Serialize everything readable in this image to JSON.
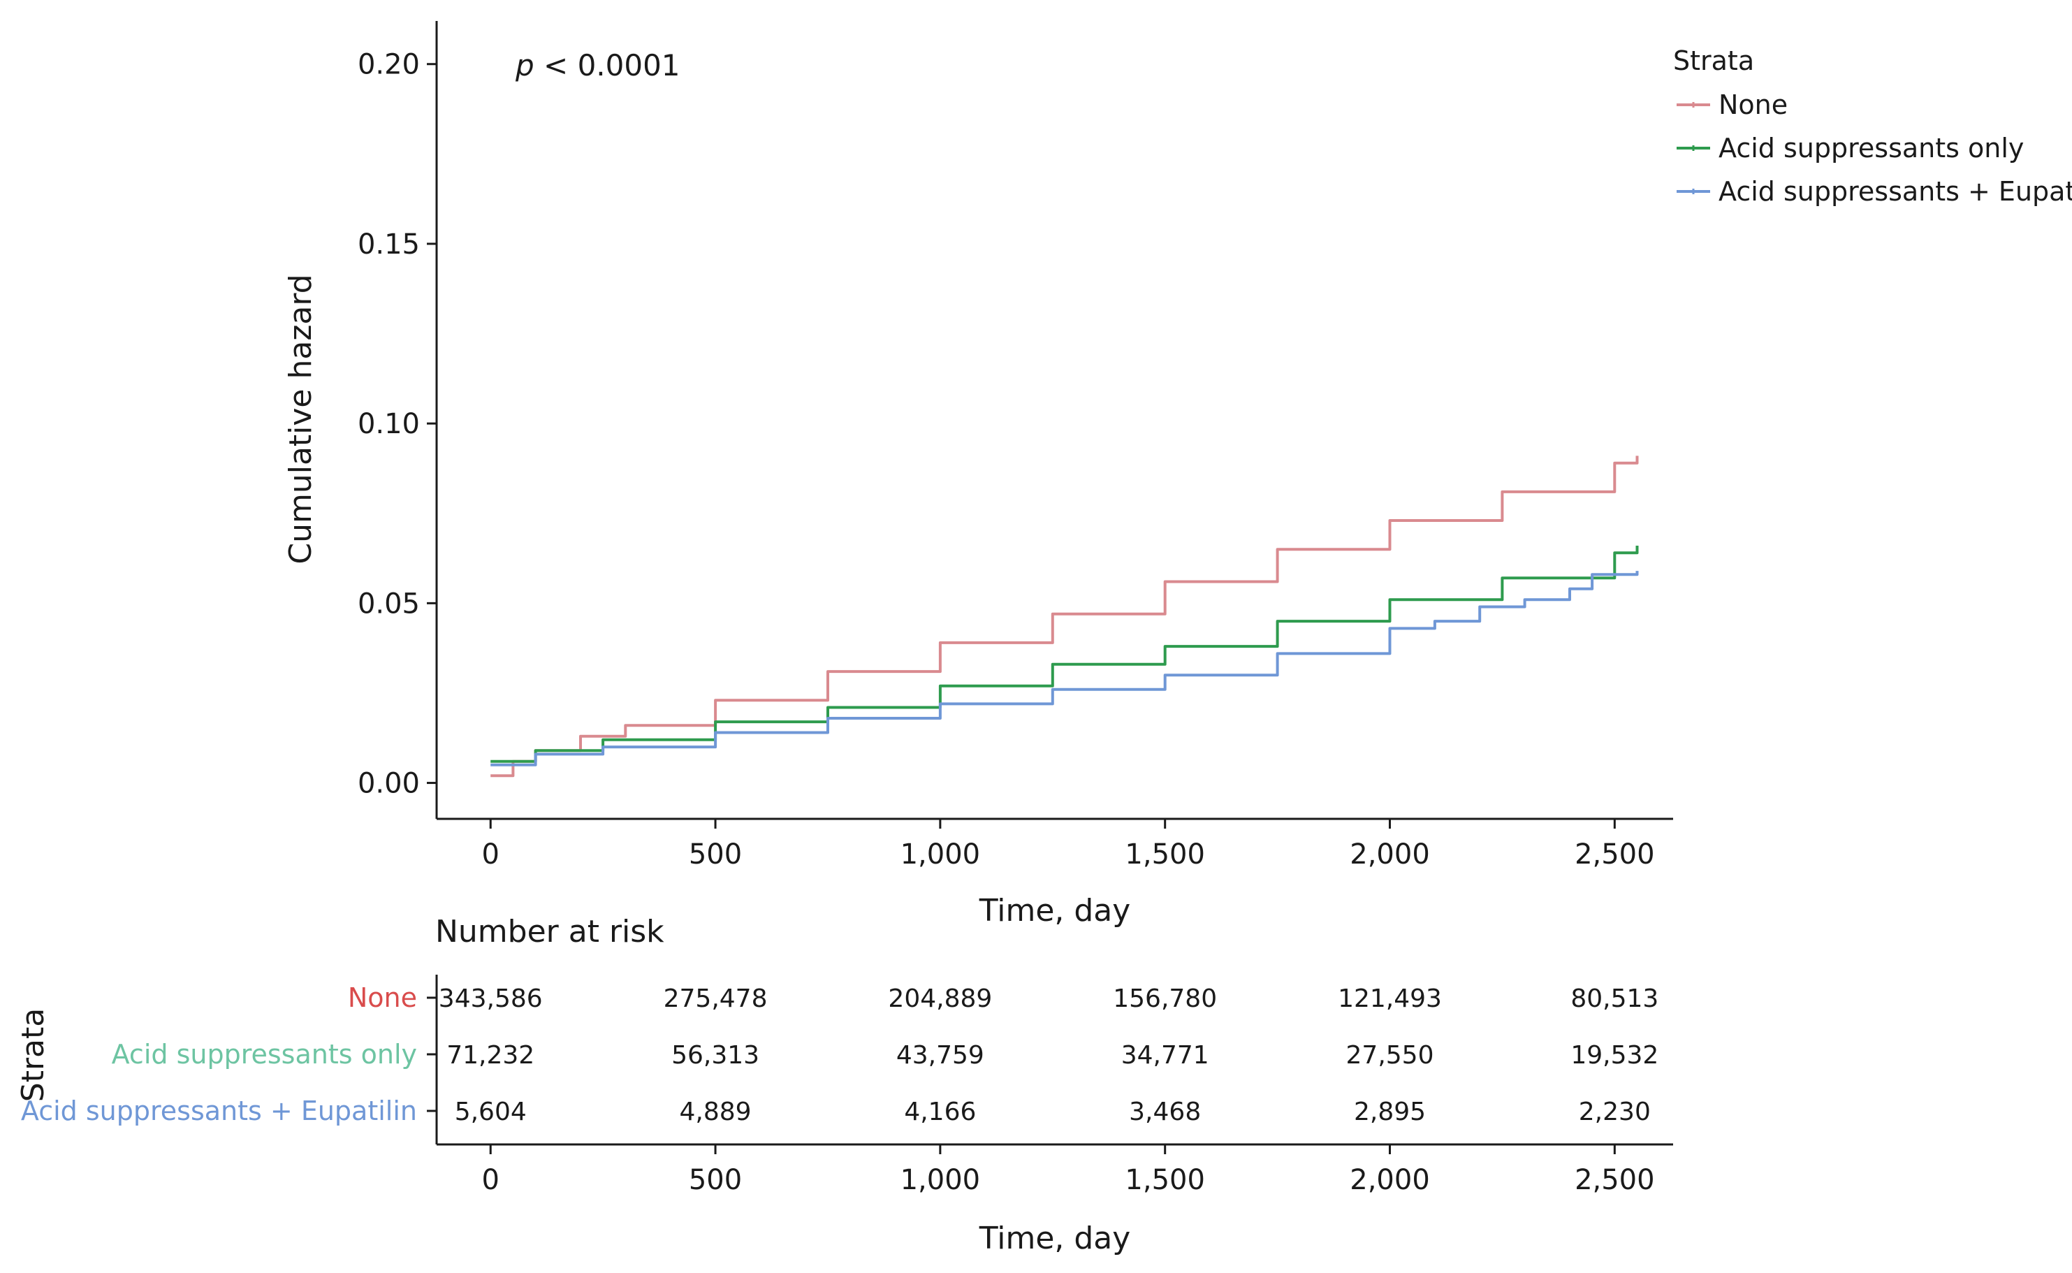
{
  "chart_data": [
    {
      "type": "line",
      "annotation": {
        "prefix": "p",
        "rest": " < 0.0001"
      },
      "xlabel": "Time, day",
      "ylabel": "Cumulative hazard",
      "xlim": [
        -120,
        2630
      ],
      "ylim": [
        -0.01,
        0.212
      ],
      "x_ticks": [
        0,
        500,
        1000,
        1500,
        2000,
        2500
      ],
      "x_tick_labels": [
        "0",
        "500",
        "1,000",
        "1,500",
        "2,000",
        "2,500"
      ],
      "y_ticks": [
        0,
        0.05,
        0.1,
        0.15,
        0.2
      ],
      "y_tick_labels": [
        "0.00",
        "0.05",
        "0.10",
        "0.15",
        "0.20"
      ],
      "grid": false,
      "legend": {
        "title": "Strata",
        "placement": "top-right, outside plot"
      },
      "series": [
        {
          "name": "None",
          "color": "#d98a8f",
          "x": [
            0,
            50,
            100,
            200,
            300,
            500,
            750,
            1000,
            1250,
            1500,
            1750,
            2000,
            2250,
            2500,
            2550
          ],
          "y": [
            0.002,
            0.006,
            0.009,
            0.013,
            0.016,
            0.023,
            0.031,
            0.039,
            0.047,
            0.056,
            0.065,
            0.073,
            0.081,
            0.089,
            0.091
          ]
        },
        {
          "name": "Acid suppressants only",
          "color": "#2e9b4e",
          "x": [
            0,
            100,
            250,
            500,
            750,
            1000,
            1250,
            1500,
            1750,
            2000,
            2250,
            2500,
            2550
          ],
          "y": [
            0.006,
            0.009,
            0.012,
            0.017,
            0.021,
            0.027,
            0.033,
            0.038,
            0.045,
            0.051,
            0.057,
            0.064,
            0.066
          ]
        },
        {
          "name": "Acid suppressants + Eupatilin",
          "color": "#6f97d6",
          "x": [
            0,
            100,
            250,
            500,
            750,
            1000,
            1250,
            1500,
            1750,
            2000,
            2100,
            2200,
            2300,
            2400,
            2450,
            2550
          ],
          "y": [
            0.005,
            0.008,
            0.01,
            0.014,
            0.018,
            0.022,
            0.026,
            0.03,
            0.036,
            0.043,
            0.045,
            0.049,
            0.051,
            0.054,
            0.058,
            0.059
          ]
        }
      ]
    },
    {
      "type": "table",
      "title": "Number at risk",
      "xlabel": "Time, day",
      "ylabel": "Strata",
      "x_ticks": [
        0,
        500,
        1000,
        1500,
        2000,
        2500
      ],
      "x_tick_labels": [
        "0",
        "500",
        "1,000",
        "1,500",
        "2,000",
        "2,500"
      ],
      "rows": [
        {
          "label": "None",
          "color": "#d94c4c",
          "values": [
            "343,586",
            "275,478",
            "204,889",
            "156,780",
            "121,493",
            "80,513"
          ]
        },
        {
          "label": "Acid suppressants only",
          "color": "#6dc4a2",
          "values": [
            "71,232",
            "56,313",
            "43,759",
            "34,771",
            "27,550",
            "19,532"
          ]
        },
        {
          "label": "Acid suppressants + Eupatilin",
          "color": "#6f97d6",
          "values": [
            "5,604",
            "4,889",
            "4,166",
            "3,468",
            "2,895",
            "2,230"
          ]
        }
      ]
    }
  ]
}
